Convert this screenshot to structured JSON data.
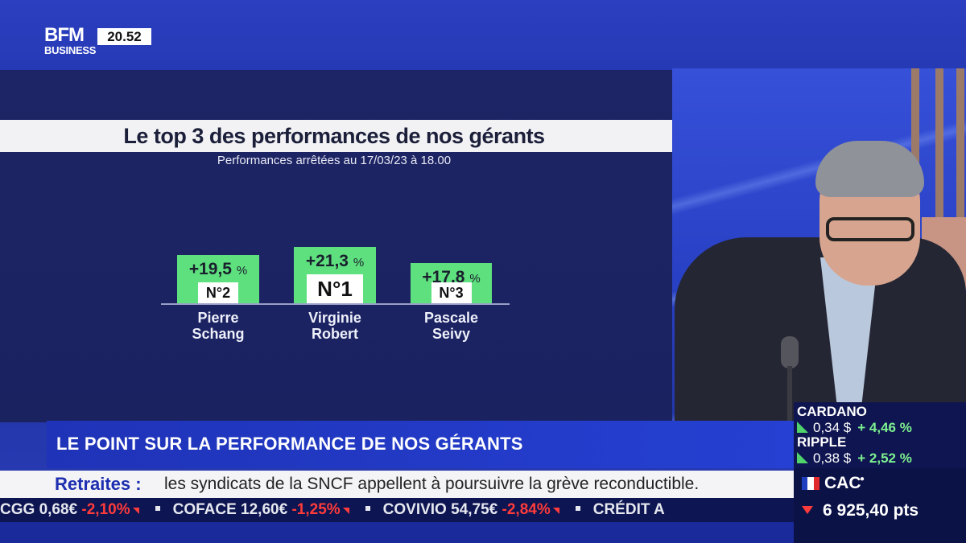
{
  "channel": {
    "logo_top": "BFM",
    "logo_bottom": "BUSINESS",
    "time": "20.52"
  },
  "chart_data": {
    "type": "bar",
    "title": "Le top 3 des performances de nos gérants",
    "subtitle": "Performances arrêtées au 17/03/23 à 18.00",
    "categories": [
      "Pierre Schang",
      "Virginie Robert",
      "Pascale Seivy"
    ],
    "values": [
      19.5,
      21.3,
      17.8
    ],
    "value_labels": [
      "+19,5",
      "+21,3",
      "+17,8"
    ],
    "unit": "%",
    "ranks": [
      "N°2",
      "N°1",
      "N°3"
    ],
    "names": [
      [
        "Pierre",
        "Schang"
      ],
      [
        "Virginie",
        "Robert"
      ],
      [
        "Pascale",
        "Seivy"
      ]
    ],
    "bar_color": "#5ee07e"
  },
  "headline": "LE POINT SUR LA PERFORMANCE DE NOS GÉRANTS",
  "news": {
    "label": "Retraites :",
    "text": "les syndicats de la SNCF appellent à poursuivre la grève reconductible."
  },
  "ticker": [
    {
      "name": "CGG",
      "price": "0,68€",
      "change": "-2,10%"
    },
    {
      "name": "COFACE",
      "price": "12,60€",
      "change": "-1,25%"
    },
    {
      "name": "COVIVIO",
      "price": "54,75€",
      "change": "-2,84%"
    },
    {
      "name": "CRÉDIT A",
      "price": "",
      "change": ""
    }
  ],
  "crypto": [
    {
      "name": "CARDANO",
      "price": "0,34 $",
      "change": "+ 4,46 %"
    },
    {
      "name": "RIPPLE",
      "price": "0,38 $",
      "change": "+ 2,52 %"
    }
  ],
  "index": {
    "name": "CAC",
    "value": "6 925,40 pts",
    "flag_colors": [
      "#1f3fbf",
      "#ffffff",
      "#e22b2b"
    ]
  }
}
